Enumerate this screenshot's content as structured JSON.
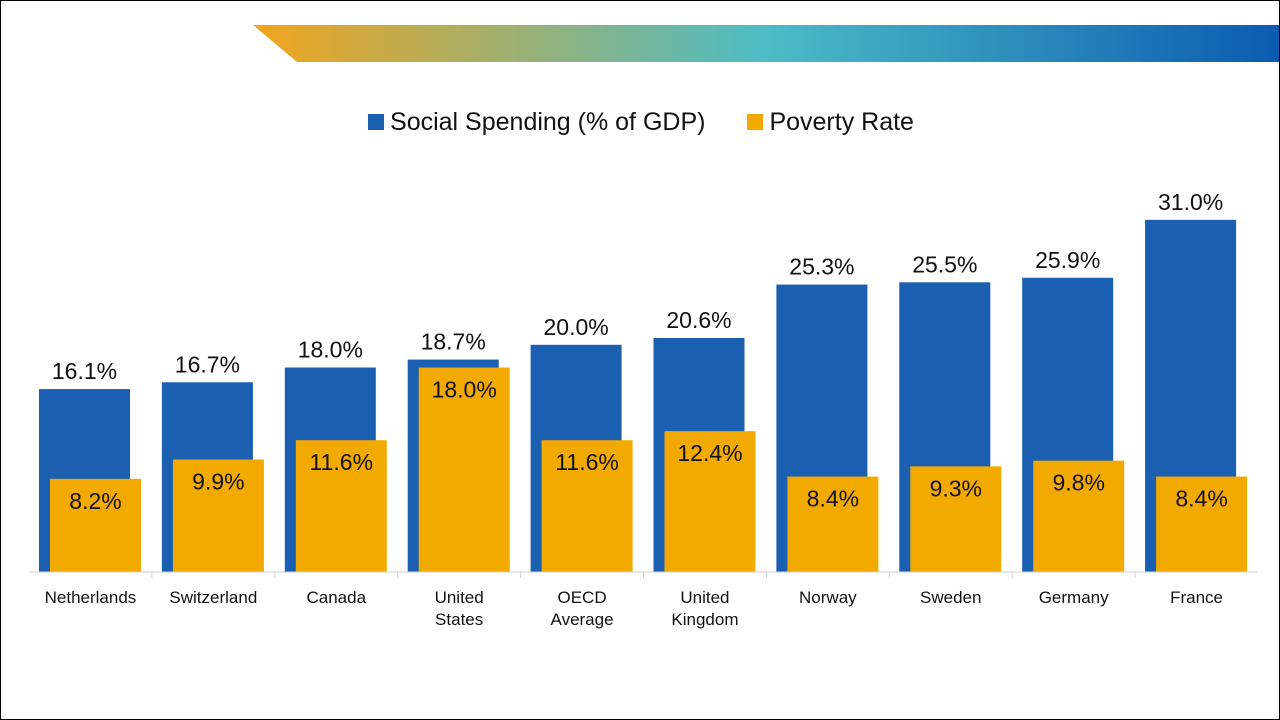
{
  "colors": {
    "spending": "#1a5fb0",
    "poverty": "#f2a900",
    "banner_start": "#f2a41c",
    "banner_mid": "#4cbcc6",
    "banner_end": "#0b5ab0",
    "axis": "#d0d0d0",
    "text": "#111111"
  },
  "chart_data": {
    "type": "bar",
    "title": "",
    "xlabel": "",
    "ylabel": "",
    "ylim": [
      0,
      35
    ],
    "grid": false,
    "legend_position": "top-center",
    "categories": [
      "Netherlands",
      "Switzerland",
      "Canada",
      "United States",
      "OECD Average",
      "United Kingdom",
      "Norway",
      "Sweden",
      "Germany",
      "France"
    ],
    "category_lines": [
      [
        "Netherlands"
      ],
      [
        "Switzerland"
      ],
      [
        "Canada"
      ],
      [
        "United",
        "States"
      ],
      [
        "OECD",
        "Average"
      ],
      [
        "United",
        "Kingdom"
      ],
      [
        "Norway"
      ],
      [
        "Sweden"
      ],
      [
        "Germany"
      ],
      [
        "France"
      ]
    ],
    "series": [
      {
        "name": "Social Spending (% of GDP)",
        "values": [
          16.1,
          16.7,
          18.0,
          18.7,
          20.0,
          20.6,
          25.3,
          25.5,
          25.9,
          31.0
        ],
        "labels": [
          "16.1%",
          "16.7%",
          "18.0%",
          "18.7%",
          "20.0%",
          "20.6%",
          "25.3%",
          "25.5%",
          "25.9%",
          "31.0%"
        ]
      },
      {
        "name": "Poverty Rate",
        "values": [
          8.2,
          9.9,
          11.6,
          18.0,
          11.6,
          12.4,
          8.4,
          9.3,
          9.8,
          8.4
        ],
        "labels": [
          "8.2%",
          "9.9%",
          "11.6%",
          "18.0%",
          "11.6%",
          "12.4%",
          "8.4%",
          "9.3%",
          "9.8%",
          "8.4%"
        ]
      }
    ]
  }
}
